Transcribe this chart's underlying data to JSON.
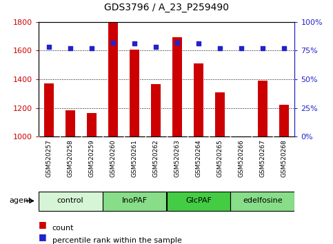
{
  "title": "GDS3796 / A_23_P259490",
  "samples": [
    "GSM520257",
    "GSM520258",
    "GSM520259",
    "GSM520260",
    "GSM520261",
    "GSM520262",
    "GSM520263",
    "GSM520264",
    "GSM520265",
    "GSM520266",
    "GSM520267",
    "GSM520268"
  ],
  "counts": [
    1370,
    1185,
    1165,
    1800,
    1605,
    1365,
    1695,
    1510,
    1310,
    1000,
    1390,
    1220
  ],
  "percentiles": [
    78,
    77,
    77,
    82,
    81,
    78,
    82,
    81,
    77,
    77,
    77,
    77
  ],
  "groups": [
    {
      "label": "control",
      "start": 0,
      "end": 3,
      "color": "#d6f5d6"
    },
    {
      "label": "InoPAF",
      "start": 3,
      "end": 6,
      "color": "#88dd88"
    },
    {
      "label": "GlcPAF",
      "start": 6,
      "end": 9,
      "color": "#44cc44"
    },
    {
      "label": "edelfosine",
      "start": 9,
      "end": 12,
      "color": "#88dd88"
    }
  ],
  "ylim": [
    1000,
    1800
  ],
  "yticks_left": [
    1000,
    1200,
    1400,
    1600,
    1800
  ],
  "yticks_right": [
    0,
    25,
    50,
    75,
    100
  ],
  "bar_color": "#cc0000",
  "dot_color": "#2222cc",
  "bar_width": 0.45,
  "left_tick_color": "#cc0000",
  "right_tick_color": "#2222cc",
  "plot_bg": "#dddddd",
  "label_bg": "#cccccc"
}
